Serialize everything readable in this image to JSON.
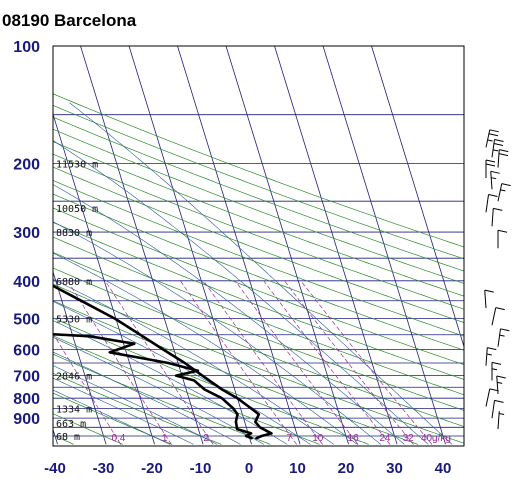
{
  "chart_data": {
    "type": "skew-t",
    "title": "08190  Barcelona",
    "pressure_ticks": [
      100,
      200,
      300,
      400,
      500,
      600,
      700,
      800,
      900
    ],
    "temp_ticks": [
      -40,
      -30,
      -20,
      -10,
      0,
      10,
      20,
      30,
      40
    ],
    "xlim": [
      -40,
      45
    ],
    "ylim_hpa": [
      1020,
      100
    ],
    "y_scale": "log",
    "height_labels": [
      {
        "p": 200,
        "text": "11530 m"
      },
      {
        "p": 260,
        "text": "10050 m"
      },
      {
        "p": 300,
        "text": "8830 m"
      },
      {
        "p": 400,
        "text": "6880 m"
      },
      {
        "p": 500,
        "text": "5330 m"
      },
      {
        "p": 700,
        "text": "2846 m"
      },
      {
        "p": 850,
        "text": "1334 m"
      },
      {
        "p": 925,
        "text": "663 m"
      },
      {
        "p": 1000,
        "text": "68 m"
      }
    ],
    "mixing_ratio_labels": [
      "0.4",
      "1",
      "2",
      "7",
      "10",
      "16",
      "24",
      "32",
      "40g/kg"
    ],
    "temperature_profile": [
      {
        "p": 1013,
        "t": 1.4
      },
      {
        "p": 1000,
        "t": 2.6
      },
      {
        "p": 985,
        "t": 4.8
      },
      {
        "p": 950,
        "t": 2.8
      },
      {
        "p": 920,
        "t": 2.2
      },
      {
        "p": 880,
        "t": 3.4
      },
      {
        "p": 850,
        "t": 2.2
      },
      {
        "p": 800,
        "t": 0.0
      },
      {
        "p": 760,
        "t": -2.6
      },
      {
        "p": 700,
        "t": -5.8
      },
      {
        "p": 650,
        "t": -8.6
      },
      {
        "p": 600,
        "t": -12.2
      },
      {
        "p": 550,
        "t": -16.0
      },
      {
        "p": 500,
        "t": -20.2
      },
      {
        "p": 450,
        "t": -26.0
      },
      {
        "p": 400,
        "t": -32.5
      },
      {
        "p": 350,
        "t": -40.6
      },
      {
        "p": 300,
        "t": -49.6
      },
      {
        "p": 250,
        "t": -53.6
      },
      {
        "p": 220,
        "t": -54.2
      },
      {
        "p": 200,
        "t": -56.5
      },
      {
        "p": 185,
        "t": -57.6
      }
    ],
    "dewpoint_profile": [
      {
        "p": 1013,
        "t": 0.4
      },
      {
        "p": 1000,
        "t": -0.6
      },
      {
        "p": 985,
        "t": 0.6
      },
      {
        "p": 960,
        "t": -2.0
      },
      {
        "p": 920,
        "t": -1.8
      },
      {
        "p": 880,
        "t": -1.0
      },
      {
        "p": 850,
        "t": -1.5
      },
      {
        "p": 800,
        "t": -3.2
      },
      {
        "p": 760,
        "t": -6.2
      },
      {
        "p": 720,
        "t": -7.8
      },
      {
        "p": 700,
        "t": -11.2
      },
      {
        "p": 680,
        "t": -6.4
      },
      {
        "p": 650,
        "t": -12.0
      },
      {
        "p": 610,
        "t": -23.4
      },
      {
        "p": 580,
        "t": -17.8
      },
      {
        "p": 555,
        "t": -26.5
      },
      {
        "p": 535,
        "t": -49.0
      },
      {
        "p": 525,
        "t": -40.0
      },
      {
        "p": 515,
        "t": -42.0
      },
      {
        "p": 505,
        "t": -66.0
      },
      {
        "p": 400,
        "t": -71.2
      },
      {
        "p": 300,
        "t": -74.6
      },
      {
        "p": 200,
        "t": -88.0
      },
      {
        "p": 190,
        "t": -88.5
      }
    ],
    "wind_barbs": [
      {
        "p": 182,
        "speed_kt": 25
      },
      {
        "p": 193,
        "speed_kt": 25
      },
      {
        "p": 205,
        "speed_kt": 20
      },
      {
        "p": 218,
        "speed_kt": 20
      },
      {
        "p": 233,
        "speed_kt": 15
      },
      {
        "p": 250,
        "speed_kt": 15
      },
      {
        "p": 267,
        "speed_kt": 10
      },
      {
        "p": 290,
        "speed_kt": 10
      },
      {
        "p": 330,
        "speed_kt": 10
      },
      {
        "p": 470,
        "speed_kt": 10
      },
      {
        "p": 520,
        "speed_kt": 10
      },
      {
        "p": 590,
        "speed_kt": 15
      },
      {
        "p": 660,
        "speed_kt": 15
      },
      {
        "p": 720,
        "speed_kt": 15
      },
      {
        "p": 780,
        "speed_kt": 15
      },
      {
        "p": 840,
        "speed_kt": 10
      },
      {
        "p": 900,
        "speed_kt": 10
      },
      {
        "p": 960,
        "speed_kt": 5
      }
    ],
    "colors": {
      "frame": "#000000",
      "temperature": "#000000",
      "isotherm": "#1f1f7a",
      "dry_adiabat": "#2a8a2a",
      "moist_adiabat": "#2a5a9a",
      "mixing_ratio": "#9b2a9b",
      "tick_label": "#1a1a7a"
    }
  }
}
